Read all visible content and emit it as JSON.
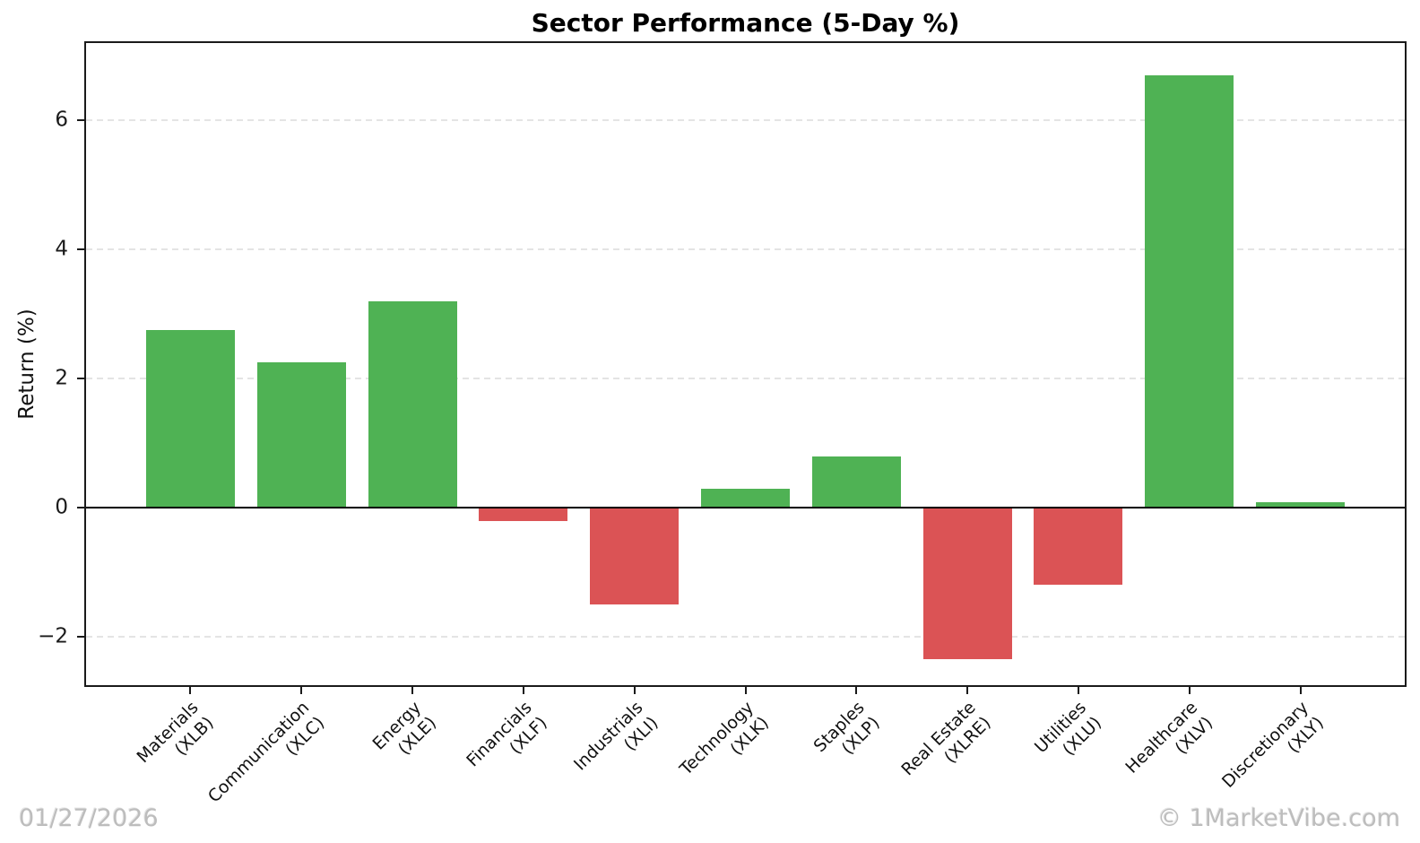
{
  "watermarks": {
    "date": "01/27/2026",
    "credit": "© 1MarketVibe.com"
  },
  "chart_data": {
    "type": "bar",
    "title": "Sector Performance (5-Day %)",
    "xlabel": "",
    "ylabel": "Return (%)",
    "categories": [
      "Materials",
      "Communication",
      "Energy",
      "Financials",
      "Industrials",
      "Technology",
      "Staples",
      "Real Estate",
      "Utilities",
      "Healthcare",
      "Discretionary"
    ],
    "tickers": [
      "(XLB)",
      "(XLC)",
      "(XLE)",
      "(XLF)",
      "(XLI)",
      "(XLK)",
      "(XLP)",
      "(XLRE)",
      "(XLU)",
      "(XLV)",
      "(XLY)"
    ],
    "values": [
      2.75,
      2.25,
      3.2,
      -0.2,
      -1.5,
      0.3,
      0.8,
      -2.35,
      -1.2,
      6.7,
      0.08
    ],
    "ylim": [
      -2.75,
      7.2
    ],
    "yticks": [
      -2,
      0,
      2,
      4,
      6
    ],
    "grid": true,
    "legend_position": "none",
    "zero_line": true,
    "colors": {
      "positive": "#4fb254",
      "negative": "#db5355"
    }
  }
}
